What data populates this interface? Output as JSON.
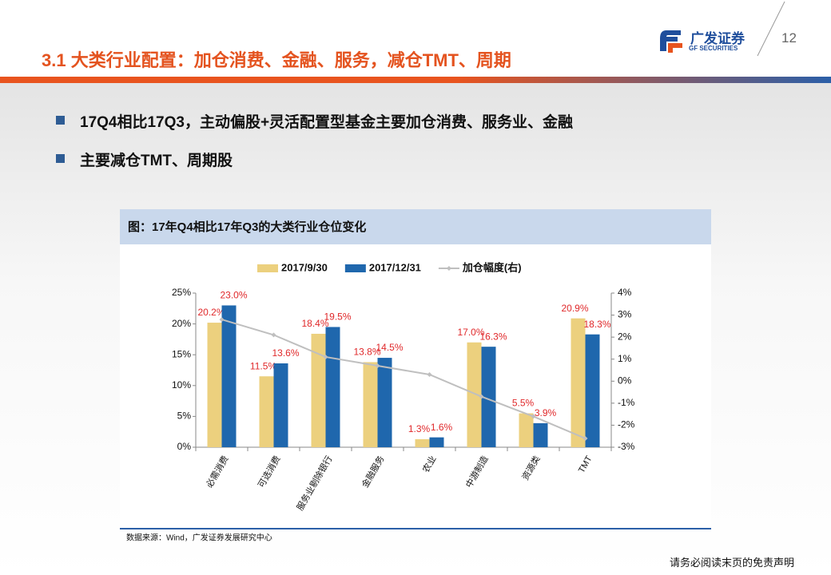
{
  "header": {
    "title": "3.1 大类行业配置：加仓消费、金融、服务，减仓TMT、周期",
    "page_number": "12",
    "logo_cn": "广发证券",
    "logo_en": "GF SECURITIES"
  },
  "bullets": [
    "17Q4相比17Q3，主动偏股+灵活配置型基金主要加仓消费、服务业、金融",
    "主要减仓TMT、周期股"
  ],
  "chart_data": {
    "type": "bar",
    "title": "图：17年Q4相比17年Q3的大类行业仓位变化",
    "categories": [
      "必需消费",
      "可选消费",
      "服务业剔除银行",
      "金融服务",
      "农业",
      "中游制造",
      "资源类",
      "TMT"
    ],
    "series": [
      {
        "name": "2017/9/30",
        "color": "#ecd07e",
        "values": [
          20.2,
          11.5,
          18.4,
          13.8,
          1.3,
          17.0,
          5.5,
          20.9
        ],
        "value_labels": [
          "20.2%",
          "11.5%",
          "18.4%",
          "13.8%",
          "1.3%",
          "17.0%",
          "5.5%",
          "20.9%"
        ]
      },
      {
        "name": "2017/12/31",
        "color": "#1f67ad",
        "values": [
          23.0,
          13.6,
          19.5,
          14.5,
          1.6,
          16.3,
          3.9,
          18.3
        ],
        "value_labels": [
          "23.0%",
          "13.6%",
          "19.5%",
          "14.5%",
          "1.6%",
          "16.3%",
          "3.9%",
          "18.3%"
        ]
      },
      {
        "name": "加仓幅度(右)",
        "type": "line",
        "axis": "y2",
        "color": "#bfbfbf",
        "values": [
          2.8,
          2.1,
          1.1,
          0.7,
          0.3,
          -0.7,
          -1.6,
          -2.6
        ]
      }
    ],
    "ylim": [
      0,
      25
    ],
    "yticks": [
      {
        "value": 0,
        "label": "0%"
      },
      {
        "value": 5,
        "label": "5%"
      },
      {
        "value": 10,
        "label": "10%"
      },
      {
        "value": 15,
        "label": "15%"
      },
      {
        "value": 20,
        "label": "20%"
      },
      {
        "value": 25,
        "label": "25%"
      }
    ],
    "y2lim": [
      -3,
      4
    ],
    "y2ticks": [
      {
        "value": -3,
        "label": "-3%"
      },
      {
        "value": -2,
        "label": "-2%"
      },
      {
        "value": -1,
        "label": "-1%"
      },
      {
        "value": 0,
        "label": "0%"
      },
      {
        "value": 1,
        "label": "1%"
      },
      {
        "value": 2,
        "label": "2%"
      },
      {
        "value": 3,
        "label": "3%"
      },
      {
        "value": 4,
        "label": "4%"
      }
    ],
    "grid": false,
    "value_label_color": "#e0282a",
    "legend": "top",
    "source": "数据来源：Wind，广发证券发展研究中心"
  },
  "footer": "请务必阅读末页的免责声明"
}
